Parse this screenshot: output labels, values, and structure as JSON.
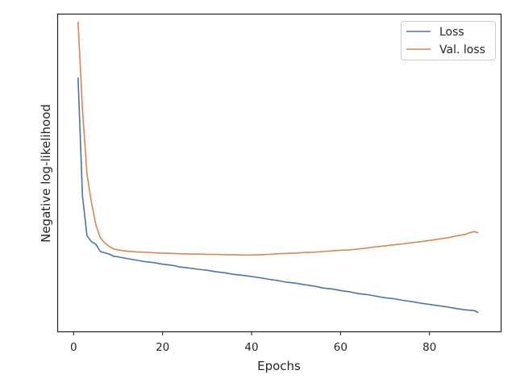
{
  "chart_data": {
    "type": "line",
    "xlabel": "Epochs",
    "ylabel": "Negative log-likelihood",
    "xlim": [
      -3.5,
      96
    ],
    "ylim": [
      0,
      1
    ],
    "x_ticks": [
      0,
      20,
      40,
      60,
      80
    ],
    "y_ticks_visible": false,
    "grid": false,
    "legend": "top-right",
    "series": [
      {
        "name": "Loss",
        "color": "#4c72b0",
        "points": [
          [
            1,
            0.801
          ],
          [
            2,
            0.427
          ],
          [
            3,
            0.302
          ],
          [
            4,
            0.283
          ],
          [
            5,
            0.275
          ],
          [
            6,
            0.252
          ],
          [
            7,
            0.248
          ],
          [
            8,
            0.244
          ],
          [
            9,
            0.237
          ],
          [
            10,
            0.235
          ],
          [
            12,
            0.23
          ],
          [
            14,
            0.225
          ],
          [
            16,
            0.22
          ],
          [
            18,
            0.217
          ],
          [
            20,
            0.212
          ],
          [
            22,
            0.209
          ],
          [
            24,
            0.203
          ],
          [
            26,
            0.2
          ],
          [
            28,
            0.196
          ],
          [
            30,
            0.193
          ],
          [
            32,
            0.188
          ],
          [
            34,
            0.185
          ],
          [
            36,
            0.18
          ],
          [
            38,
            0.177
          ],
          [
            40,
            0.173
          ],
          [
            42,
            0.169
          ],
          [
            44,
            0.164
          ],
          [
            46,
            0.16
          ],
          [
            48,
            0.155
          ],
          [
            50,
            0.152
          ],
          [
            52,
            0.147
          ],
          [
            54,
            0.143
          ],
          [
            56,
            0.137
          ],
          [
            58,
            0.134
          ],
          [
            60,
            0.129
          ],
          [
            62,
            0.125
          ],
          [
            64,
            0.119
          ],
          [
            66,
            0.116
          ],
          [
            68,
            0.111
          ],
          [
            70,
            0.106
          ],
          [
            72,
            0.103
          ],
          [
            74,
            0.098
          ],
          [
            76,
            0.094
          ],
          [
            78,
            0.089
          ],
          [
            80,
            0.085
          ],
          [
            82,
            0.081
          ],
          [
            84,
            0.077
          ],
          [
            86,
            0.072
          ],
          [
            88,
            0.068
          ],
          [
            90,
            0.066
          ],
          [
            91,
            0.059
          ]
        ]
      },
      {
        "name": "Val. loss",
        "color": "#dd8452",
        "points": [
          [
            1,
            0.977
          ],
          [
            2,
            0.7
          ],
          [
            3,
            0.496
          ],
          [
            4,
            0.407
          ],
          [
            5,
            0.337
          ],
          [
            6,
            0.296
          ],
          [
            7,
            0.279
          ],
          [
            8,
            0.268
          ],
          [
            9,
            0.26
          ],
          [
            10,
            0.257
          ],
          [
            12,
            0.253
          ],
          [
            14,
            0.251
          ],
          [
            16,
            0.25
          ],
          [
            18,
            0.248
          ],
          [
            20,
            0.247
          ],
          [
            22,
            0.246
          ],
          [
            24,
            0.245
          ],
          [
            26,
            0.244
          ],
          [
            28,
            0.244
          ],
          [
            30,
            0.243
          ],
          [
            32,
            0.243
          ],
          [
            34,
            0.242
          ],
          [
            36,
            0.242
          ],
          [
            38,
            0.241
          ],
          [
            40,
            0.241
          ],
          [
            42,
            0.242
          ],
          [
            44,
            0.243
          ],
          [
            46,
            0.245
          ],
          [
            48,
            0.246
          ],
          [
            50,
            0.247
          ],
          [
            52,
            0.249
          ],
          [
            54,
            0.25
          ],
          [
            56,
            0.252
          ],
          [
            58,
            0.254
          ],
          [
            60,
            0.256
          ],
          [
            62,
            0.257
          ],
          [
            64,
            0.26
          ],
          [
            66,
            0.263
          ],
          [
            68,
            0.267
          ],
          [
            70,
            0.27
          ],
          [
            72,
            0.273
          ],
          [
            74,
            0.276
          ],
          [
            76,
            0.28
          ],
          [
            78,
            0.283
          ],
          [
            80,
            0.287
          ],
          [
            82,
            0.291
          ],
          [
            84,
            0.295
          ],
          [
            86,
            0.301
          ],
          [
            88,
            0.306
          ],
          [
            89,
            0.311
          ],
          [
            90,
            0.315
          ],
          [
            91,
            0.311
          ]
        ]
      }
    ]
  }
}
